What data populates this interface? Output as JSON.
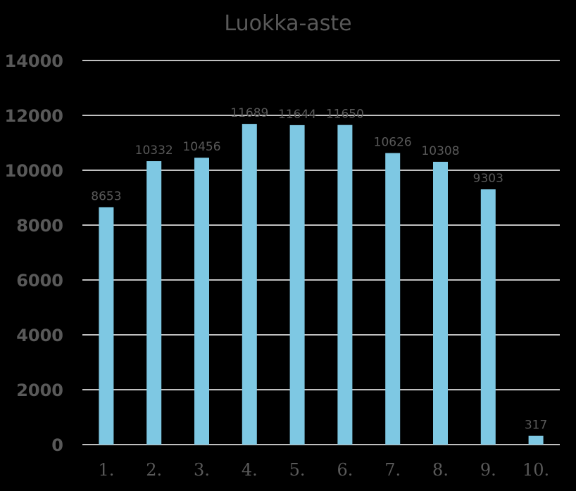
{
  "chart_data": {
    "type": "bar",
    "title": "Luokka-aste",
    "categories": [
      "1.",
      "2.",
      "3.",
      "4.",
      "5.",
      "6.",
      "7.",
      "8.",
      "9.",
      "10."
    ],
    "values": [
      8653,
      10332,
      10456,
      11689,
      11644,
      11650,
      10626,
      10308,
      9303,
      317
    ],
    "data_labels": [
      "8653",
      "10332",
      "10456",
      "11689",
      "11644",
      "11650",
      "10626",
      "10308",
      "9303",
      "317"
    ],
    "y_ticks": [
      "0",
      "2000",
      "4000",
      "6000",
      "8000",
      "10000",
      "12000",
      "14000"
    ],
    "ylim": [
      0,
      14000
    ],
    "grid": true,
    "legend": "none",
    "bar_color": "#7ec8e3",
    "grid_color": "#ffffff",
    "text_color": "#595959",
    "background": "#000000"
  }
}
